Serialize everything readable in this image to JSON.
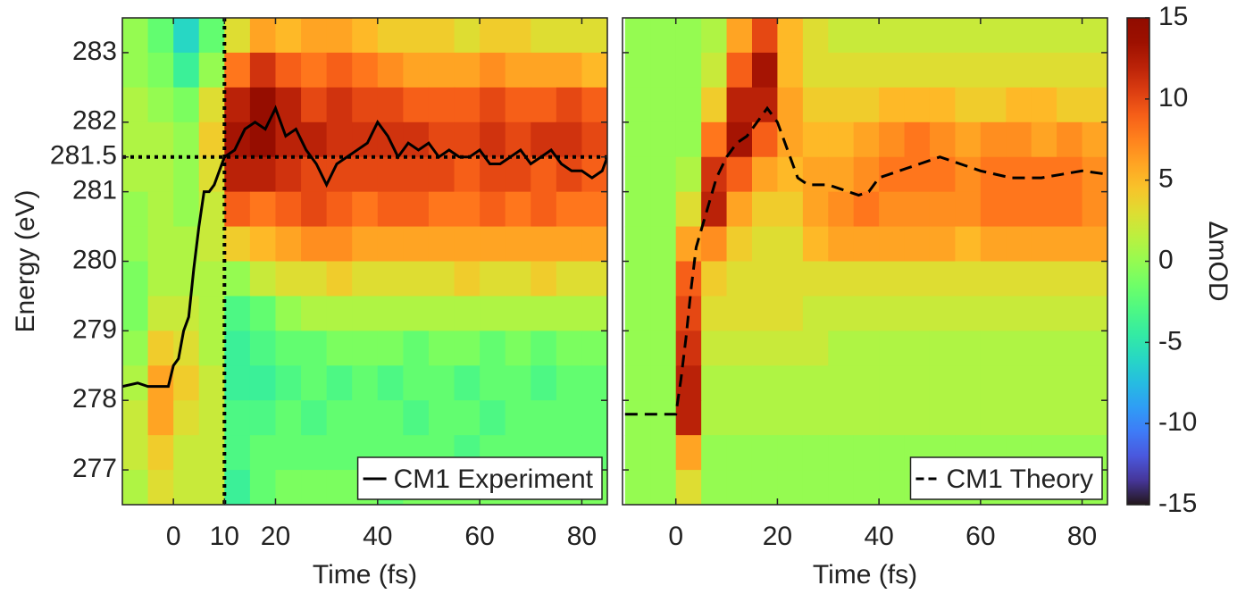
{
  "chart_data": [
    {
      "type": "heatmap",
      "xlabel": "Time (fs)",
      "ylabel": "Energy (eV)",
      "colormap": "turbo",
      "xlim": [
        -10,
        85
      ],
      "ylim": [
        276.5,
        283.5
      ],
      "xticks": [
        0,
        10,
        20,
        40,
        60,
        80
      ],
      "yticks": [
        277,
        278,
        279,
        280,
        281,
        281.5,
        282,
        283
      ],
      "ytick_labels": true,
      "legend": "lower right",
      "ref_lines": [
        {
          "axis": "x",
          "value": 10
        },
        {
          "axis": "y",
          "value": 281.5
        }
      ],
      "heatmap": {
        "x": [
          -7.5,
          -2.5,
          2.5,
          7.5,
          12.5,
          17.5,
          22.5,
          27.5,
          32.5,
          37.5,
          42.5,
          47.5,
          52.5,
          57.5,
          62.5,
          67.5,
          72.5,
          77.5,
          82.5
        ],
        "y": [
          283.25,
          282.75,
          282.25,
          281.75,
          281.25,
          280.75,
          280.25,
          279.75,
          279.25,
          278.75,
          278.25,
          277.75,
          277.25,
          276.75
        ],
        "z": [
          [
            0,
            -2,
            -6,
            -2,
            3,
            6,
            5,
            6,
            6,
            5,
            4,
            4,
            4,
            3,
            4,
            4,
            3,
            3,
            3
          ],
          [
            0,
            -1,
            -4,
            0,
            8,
            11,
            9,
            8,
            9,
            8,
            7,
            6,
            6,
            6,
            7,
            6,
            6,
            6,
            5
          ],
          [
            1,
            0,
            -1,
            3,
            12,
            14,
            12,
            10,
            11,
            10,
            10,
            9,
            9,
            9,
            10,
            9,
            9,
            10,
            9
          ],
          [
            1,
            1,
            0,
            4,
            13,
            14,
            12,
            12,
            11,
            11,
            11,
            11,
            10,
            10,
            11,
            10,
            11,
            11,
            10
          ],
          [
            1,
            1,
            0,
            3,
            12,
            12,
            11,
            10,
            10,
            10,
            10,
            10,
            10,
            9,
            10,
            10,
            9,
            10,
            9
          ],
          [
            0,
            1,
            0,
            2,
            9,
            8,
            9,
            10,
            9,
            8,
            9,
            9,
            8,
            8,
            9,
            8,
            9,
            8,
            8
          ],
          [
            0,
            1,
            1,
            2,
            4,
            5,
            6,
            7,
            7,
            6,
            6,
            6,
            6,
            6,
            6,
            6,
            6,
            6,
            6
          ],
          [
            -1,
            1,
            1,
            1,
            0,
            2,
            3,
            3,
            4,
            3,
            3,
            3,
            3,
            4,
            3,
            3,
            4,
            3,
            3
          ],
          [
            -1,
            2,
            2,
            1,
            -3,
            -2,
            0,
            1,
            1,
            1,
            1,
            1,
            1,
            1,
            1,
            1,
            1,
            1,
            1
          ],
          [
            0,
            4,
            3,
            1,
            -4,
            -3,
            -2,
            -2,
            -1,
            -1,
            -1,
            -2,
            -1,
            -1,
            -2,
            -1,
            -2,
            -1,
            -1
          ],
          [
            1,
            6,
            4,
            2,
            -4,
            -4,
            -3,
            -2,
            -3,
            -2,
            -3,
            -2,
            -2,
            -3,
            -2,
            -2,
            -3,
            -2,
            -2
          ],
          [
            2,
            6,
            3,
            2,
            -3,
            -3,
            -2,
            -3,
            -2,
            -2,
            -2,
            -3,
            -2,
            -2,
            -3,
            -2,
            -2,
            -2,
            -2
          ],
          [
            2,
            4,
            2,
            2,
            -3,
            -2,
            -2,
            -2,
            -2,
            -2,
            -2,
            -2,
            -2,
            -3,
            -2,
            -2,
            -2,
            -2,
            -2
          ],
          [
            1,
            3,
            2,
            2,
            -4,
            -2,
            -1,
            -1,
            -1,
            -1,
            -2,
            -1,
            -1,
            -1,
            -1,
            -1,
            -1,
            -1,
            -1
          ]
        ]
      },
      "series": [
        {
          "name": "CM1 Experiment",
          "color": "#000000",
          "dash": "solid",
          "x": [
            -10,
            -7,
            -5,
            -3,
            -1,
            0,
            1,
            2,
            3,
            4,
            5,
            6,
            7,
            8,
            9,
            10,
            12,
            14,
            16,
            18,
            20,
            22,
            24,
            26,
            28,
            30,
            32,
            34,
            36,
            38,
            40,
            42,
            44,
            46,
            48,
            50,
            52,
            54,
            56,
            58,
            60,
            62,
            64,
            66,
            68,
            70,
            72,
            74,
            76,
            78,
            80,
            82,
            84,
            85
          ],
          "values": [
            278.2,
            278.25,
            278.2,
            278.2,
            278.2,
            278.5,
            278.6,
            279.0,
            279.2,
            279.9,
            280.5,
            281.0,
            281.0,
            281.1,
            281.3,
            281.5,
            281.6,
            281.9,
            282.0,
            281.9,
            282.2,
            281.8,
            281.9,
            281.6,
            281.4,
            281.1,
            281.4,
            281.5,
            281.6,
            281.7,
            282.0,
            281.8,
            281.5,
            281.7,
            281.6,
            281.7,
            281.5,
            281.6,
            281.5,
            281.5,
            281.6,
            281.4,
            281.4,
            281.5,
            281.6,
            281.4,
            281.5,
            281.6,
            281.4,
            281.3,
            281.3,
            281.2,
            281.3,
            281.5
          ]
        }
      ]
    },
    {
      "type": "heatmap",
      "xlabel": "Time (fs)",
      "colormap": "turbo",
      "xlim": [
        -10.5,
        85
      ],
      "ylim": [
        276.5,
        283.5
      ],
      "xticks": [
        0,
        20,
        40,
        60,
        80
      ],
      "yticks": [
        277,
        278,
        279,
        280,
        281,
        282,
        283
      ],
      "ytick_labels": false,
      "legend": "lower right",
      "heatmap": {
        "x": [
          -7.5,
          -2.5,
          2.5,
          7.5,
          12.5,
          17.5,
          22.5,
          27.5,
          32.5,
          37.5,
          42.5,
          47.5,
          52.5,
          57.5,
          62.5,
          67.5,
          72.5,
          77.5,
          82.5
        ],
        "y": [
          283.25,
          282.75,
          282.25,
          281.75,
          281.25,
          280.75,
          280.25,
          279.75,
          279.25,
          278.75,
          278.25,
          277.75,
          277.25,
          276.75
        ],
        "z": [
          [
            0,
            0,
            0,
            1,
            6,
            10,
            5,
            3,
            2,
            2,
            2,
            2,
            2,
            2,
            2,
            2,
            2,
            2,
            2
          ],
          [
            0,
            0,
            0,
            2,
            9,
            13,
            5,
            3,
            3,
            3,
            3,
            3,
            3,
            3,
            3,
            3,
            3,
            3,
            3
          ],
          [
            0,
            0,
            0,
            4,
            12,
            12,
            6,
            4,
            4,
            4,
            5,
            5,
            5,
            4,
            4,
            5,
            5,
            4,
            4
          ],
          [
            0,
            0,
            0,
            8,
            13,
            9,
            6,
            5,
            5,
            6,
            7,
            8,
            7,
            6,
            7,
            7,
            6,
            7,
            6
          ],
          [
            0,
            0,
            1,
            11,
            9,
            6,
            5,
            6,
            6,
            7,
            8,
            8,
            8,
            7,
            8,
            8,
            8,
            8,
            7
          ],
          [
            0,
            0,
            3,
            12,
            6,
            4,
            4,
            6,
            7,
            8,
            7,
            7,
            7,
            7,
            8,
            8,
            8,
            8,
            7
          ],
          [
            0,
            0,
            6,
            7,
            4,
            3,
            3,
            5,
            6,
            6,
            6,
            6,
            6,
            5,
            6,
            6,
            6,
            6,
            6
          ],
          [
            0,
            0,
            9,
            4,
            3,
            3,
            3,
            3,
            3,
            3,
            3,
            3,
            3,
            3,
            3,
            3,
            3,
            3,
            3
          ],
          [
            0,
            0,
            10,
            3,
            3,
            3,
            3,
            2,
            2,
            2,
            2,
            2,
            2,
            2,
            2,
            2,
            2,
            2,
            2
          ],
          [
            0,
            0,
            11,
            2,
            2,
            2,
            2,
            2,
            1,
            1,
            1,
            1,
            1,
            1,
            1,
            1,
            1,
            1,
            1
          ],
          [
            0,
            0,
            12,
            1,
            1,
            1,
            1,
            1,
            1,
            1,
            1,
            1,
            1,
            1,
            1,
            1,
            1,
            1,
            1
          ],
          [
            0,
            0,
            12,
            1,
            1,
            1,
            1,
            1,
            1,
            1,
            1,
            1,
            1,
            1,
            1,
            1,
            1,
            1,
            1
          ],
          [
            0,
            0,
            6,
            0,
            0,
            0,
            0,
            0,
            0,
            0,
            0,
            0,
            0,
            0,
            0,
            0,
            0,
            0,
            0
          ],
          [
            0,
            0,
            3,
            0,
            0,
            0,
            0,
            0,
            0,
            0,
            0,
            0,
            0,
            0,
            0,
            0,
            0,
            0,
            0
          ]
        ]
      },
      "series": [
        {
          "name": "CM1 Theory",
          "color": "#000000",
          "dash": "dashed",
          "x": [
            -10,
            -1,
            0,
            1,
            2,
            3,
            4,
            6,
            8,
            10,
            12,
            14,
            16,
            18,
            20,
            22,
            24,
            26,
            30,
            34,
            36,
            38,
            40,
            44,
            48,
            52,
            56,
            60,
            66,
            72,
            76,
            80,
            85
          ],
          "values": [
            277.8,
            277.8,
            277.8,
            278.3,
            278.9,
            279.6,
            280.2,
            280.7,
            281.2,
            281.5,
            281.7,
            281.8,
            282.0,
            282.2,
            282.0,
            281.6,
            281.2,
            281.1,
            281.1,
            281.0,
            280.95,
            281.0,
            281.2,
            281.3,
            281.4,
            281.5,
            281.4,
            281.3,
            281.2,
            281.2,
            281.25,
            281.3,
            281.25
          ]
        }
      ],
      "colorbar": {
        "label": "ΔmOD",
        "clim": [
          -15,
          15
        ],
        "ticks": [
          -15,
          -10,
          -5,
          0,
          5,
          10,
          15
        ]
      }
    }
  ]
}
